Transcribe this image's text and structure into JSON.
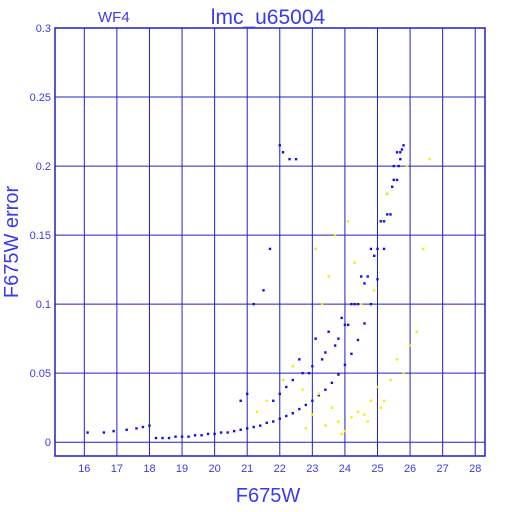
{
  "chart_data": {
    "type": "scatter",
    "title": "lmc_u65004",
    "panel_label": "WF4",
    "xlabel": "F675W",
    "ylabel": "F675W error",
    "xlim": [
      15.1,
      28.3
    ],
    "ylim": [
      -0.01,
      0.3
    ],
    "xticks": [
      16,
      17,
      18,
      19,
      20,
      21,
      22,
      23,
      24,
      25,
      26,
      27,
      28
    ],
    "yticks": [
      0,
      0.05,
      0.1,
      0.15,
      0.2,
      0.25,
      0.3
    ],
    "ytick_labels": [
      "0",
      "0.05",
      "0.1",
      "0.15",
      "0.2",
      "0.25",
      "0.3"
    ],
    "grid": true,
    "colors": {
      "axis": "#2020c8",
      "text": "#3a3af0",
      "main": "#1010e0",
      "secondary": "#f0f000"
    },
    "series": [
      {
        "color": "#1010e0",
        "x": [
          16.1,
          16.6,
          16.9,
          17.3,
          17.6,
          17.8,
          18.0,
          18.2,
          18.4,
          18.6,
          18.8,
          19.0,
          19.2,
          19.4,
          19.6,
          19.8,
          20.0,
          20.2,
          20.4,
          20.6,
          20.8,
          21.0,
          21.2,
          21.4,
          21.6,
          21.8,
          22.0,
          22.2,
          22.4,
          22.6,
          22.8,
          23.0,
          23.2,
          23.4,
          23.6,
          23.8,
          24.0,
          24.2,
          24.4,
          24.6,
          24.8,
          25.0,
          25.2,
          25.4,
          25.6,
          25.7,
          25.8,
          22.0,
          22.1,
          22.3,
          22.5,
          21.2,
          21.5,
          21.7,
          20.8,
          21.0,
          22.6,
          23.1,
          23.5,
          23.9,
          24.2,
          24.5,
          24.8,
          25.1,
          25.3,
          25.5,
          25.6,
          25.75,
          22.2,
          22.9,
          23.3,
          23.7,
          24.0,
          24.3,
          24.6,
          24.9,
          25.2,
          25.45,
          25.65,
          21.8,
          22.0,
          22.4,
          22.7,
          23.0,
          23.4,
          23.8,
          24.1,
          24.4,
          24.7,
          25.0,
          25.3,
          25.5,
          25.7
        ],
        "y": [
          0.007,
          0.007,
          0.008,
          0.009,
          0.01,
          0.011,
          0.012,
          0.003,
          0.003,
          0.003,
          0.004,
          0.004,
          0.004,
          0.005,
          0.005,
          0.006,
          0.006,
          0.007,
          0.007,
          0.008,
          0.009,
          0.01,
          0.011,
          0.012,
          0.014,
          0.015,
          0.017,
          0.019,
          0.021,
          0.024,
          0.027,
          0.03,
          0.034,
          0.038,
          0.043,
          0.049,
          0.056,
          0.064,
          0.074,
          0.086,
          0.1,
          0.118,
          0.14,
          0.165,
          0.19,
          0.205,
          0.215,
          0.215,
          0.21,
          0.205,
          0.205,
          0.1,
          0.11,
          0.14,
          0.03,
          0.035,
          0.06,
          0.075,
          0.08,
          0.09,
          0.1,
          0.12,
          0.14,
          0.16,
          0.18,
          0.2,
          0.21,
          0.212,
          0.04,
          0.05,
          0.06,
          0.07,
          0.085,
          0.1,
          0.115,
          0.135,
          0.16,
          0.185,
          0.2,
          0.03,
          0.035,
          0.045,
          0.05,
          0.055,
          0.065,
          0.075,
          0.085,
          0.1,
          0.12,
          0.14,
          0.165,
          0.19,
          0.21
        ]
      },
      {
        "color": "#f0f000",
        "x": [
          21.3,
          21.6,
          22.1,
          22.4,
          22.7,
          23.0,
          23.2,
          23.4,
          23.6,
          23.8,
          24.0,
          24.2,
          24.4,
          24.6,
          24.8,
          25.0,
          25.2,
          25.4,
          25.6,
          25.8,
          26.0,
          26.2,
          23.1,
          23.3,
          23.5,
          23.7,
          24.1,
          24.3,
          24.5,
          24.9,
          25.3,
          25.9,
          26.4,
          26.6,
          22.8,
          23.9,
          24.7,
          25.1
        ],
        "y": [
          0.022,
          0.03,
          0.045,
          0.055,
          0.038,
          0.02,
          0.035,
          0.012,
          0.025,
          0.015,
          0.008,
          0.018,
          0.022,
          0.02,
          0.03,
          0.04,
          0.03,
          0.045,
          0.06,
          0.05,
          0.07,
          0.08,
          0.14,
          0.1,
          0.12,
          0.15,
          0.16,
          0.13,
          0.1,
          0.11,
          0.18,
          0.2,
          0.14,
          0.205,
          0.01,
          0.006,
          0.015,
          0.025
        ]
      }
    ]
  }
}
